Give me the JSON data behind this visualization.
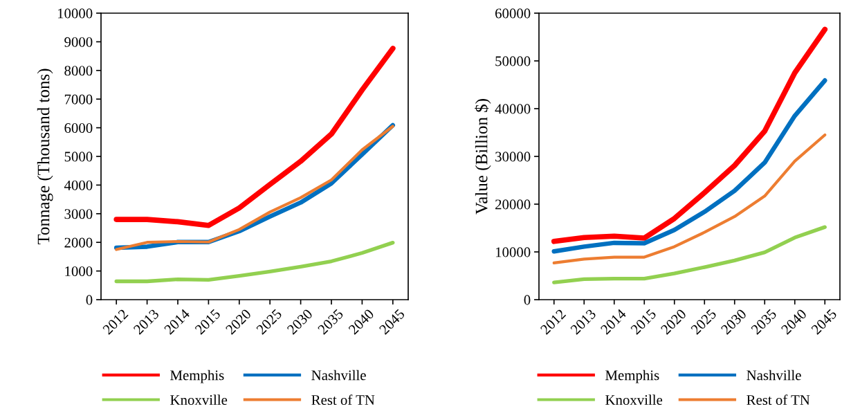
{
  "chart_data": [
    {
      "type": "line",
      "ylabel": "Tonnage (Thousand tons)",
      "categories": [
        "2012",
        "2013",
        "2014",
        "2015",
        "2020",
        "2025",
        "2030",
        "2035",
        "2040",
        "2045"
      ],
      "ylim": [
        0,
        10000
      ],
      "yticks": [
        0,
        1000,
        2000,
        3000,
        4000,
        5000,
        6000,
        7000,
        8000,
        9000,
        10000
      ],
      "grid": false,
      "legend": "bottom",
      "marker": "none",
      "line_style": "solid",
      "series": [
        {
          "name": "Memphis",
          "color": "#ff0000",
          "values": [
            2800,
            2800,
            2720,
            2590,
            3200,
            4020,
            4830,
            5780,
            7320,
            8770
          ]
        },
        {
          "name": "Nashville",
          "color": "#0070c0",
          "values": [
            1810,
            1850,
            2010,
            2010,
            2390,
            2900,
            3390,
            4060,
            5070,
            6090
          ]
        },
        {
          "name": "Knoxville",
          "color": "#92d050",
          "values": [
            640,
            640,
            710,
            690,
            830,
            980,
            1150,
            1340,
            1630,
            1990
          ]
        },
        {
          "name": "Rest of TN",
          "color": "#ed7d31",
          "values": [
            1750,
            2000,
            2030,
            2010,
            2450,
            3060,
            3560,
            4180,
            5230,
            6050
          ]
        }
      ]
    },
    {
      "type": "line",
      "ylabel": "Value (Billion $)",
      "categories": [
        "2012",
        "2013",
        "2014",
        "2015",
        "2020",
        "2025",
        "2030",
        "2035",
        "2040",
        "2045"
      ],
      "ylim": [
        0,
        60000
      ],
      "yticks": [
        0,
        10000,
        20000,
        30000,
        40000,
        50000,
        60000
      ],
      "grid": false,
      "legend": "bottom",
      "marker": "none",
      "line_style": "solid",
      "series": [
        {
          "name": "Memphis",
          "color": "#ff0000",
          "values": [
            12200,
            13000,
            13300,
            12900,
            17000,
            22400,
            28100,
            35300,
            47500,
            56600
          ]
        },
        {
          "name": "Nashville",
          "color": "#0070c0",
          "values": [
            10100,
            11100,
            11900,
            11800,
            14600,
            18400,
            22800,
            28700,
            38500,
            45900
          ]
        },
        {
          "name": "Knoxville",
          "color": "#92d050",
          "values": [
            3600,
            4300,
            4400,
            4400,
            5500,
            6800,
            8200,
            9900,
            13000,
            15200
          ]
        },
        {
          "name": "Rest of TN",
          "color": "#ed7d31",
          "values": [
            7700,
            8500,
            8900,
            8900,
            11100,
            14100,
            17400,
            21700,
            29000,
            34500
          ]
        }
      ]
    }
  ]
}
